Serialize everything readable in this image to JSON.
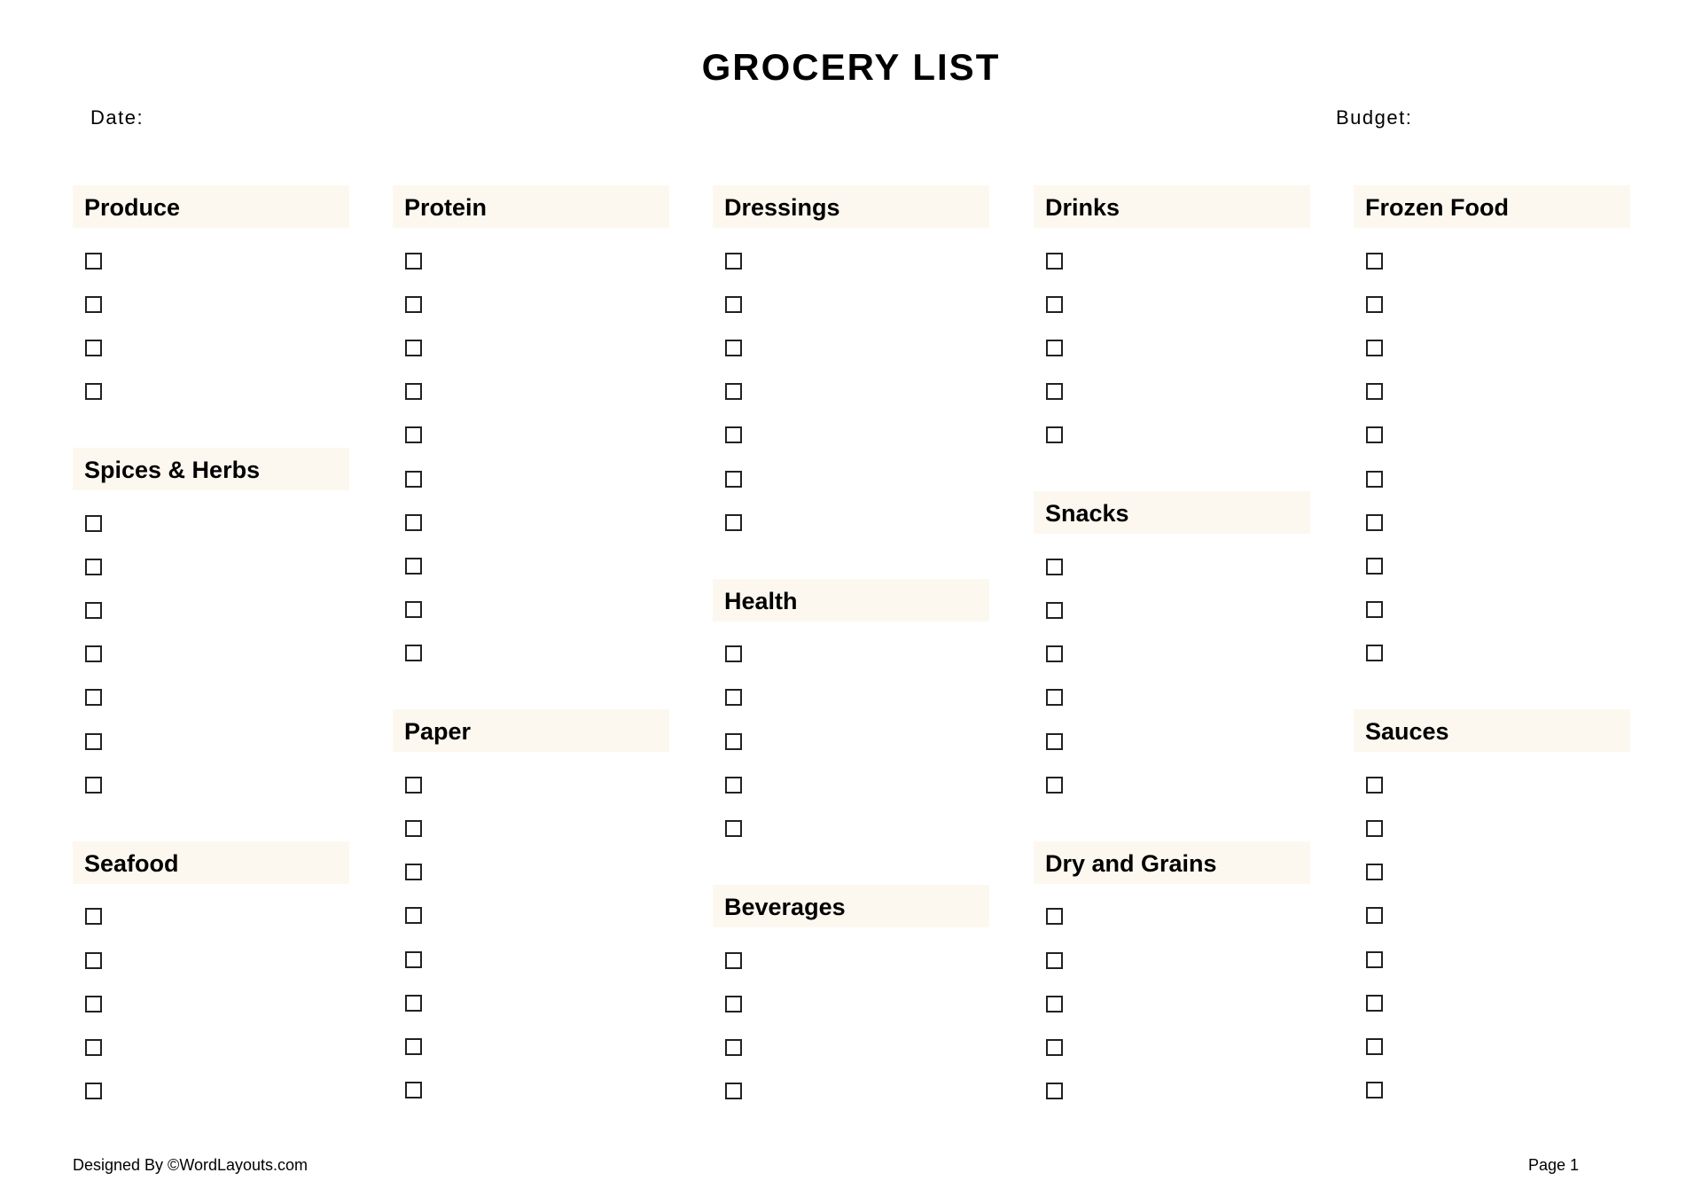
{
  "title": "GROCERY LIST",
  "date_label": "Date:",
  "budget_label": "Budget:",
  "header_bg": "#fcf8ef",
  "columns": [
    {
      "sections": [
        {
          "name": "Produce",
          "items": 4
        },
        {
          "name": "Spices & Herbs",
          "items": 7
        },
        {
          "name": "Seafood",
          "items": 5
        }
      ]
    },
    {
      "sections": [
        {
          "name": "Protein",
          "items": 10
        },
        {
          "name": "Paper",
          "items": 8
        }
      ]
    },
    {
      "sections": [
        {
          "name": "Dressings",
          "items": 7
        },
        {
          "name": "Health",
          "items": 5
        },
        {
          "name": "Beverages",
          "items": 4
        }
      ]
    },
    {
      "sections": [
        {
          "name": "Drinks",
          "items": 5
        },
        {
          "name": "Snacks",
          "items": 6
        },
        {
          "name": "Dry and Grains",
          "items": 5
        }
      ]
    },
    {
      "sections": [
        {
          "name": "Frozen Food",
          "items": 10
        },
        {
          "name": "Sauces",
          "items": 8
        }
      ]
    }
  ],
  "footer": {
    "credit": "Designed By ©WordLayouts.com",
    "page": "Page 1"
  }
}
